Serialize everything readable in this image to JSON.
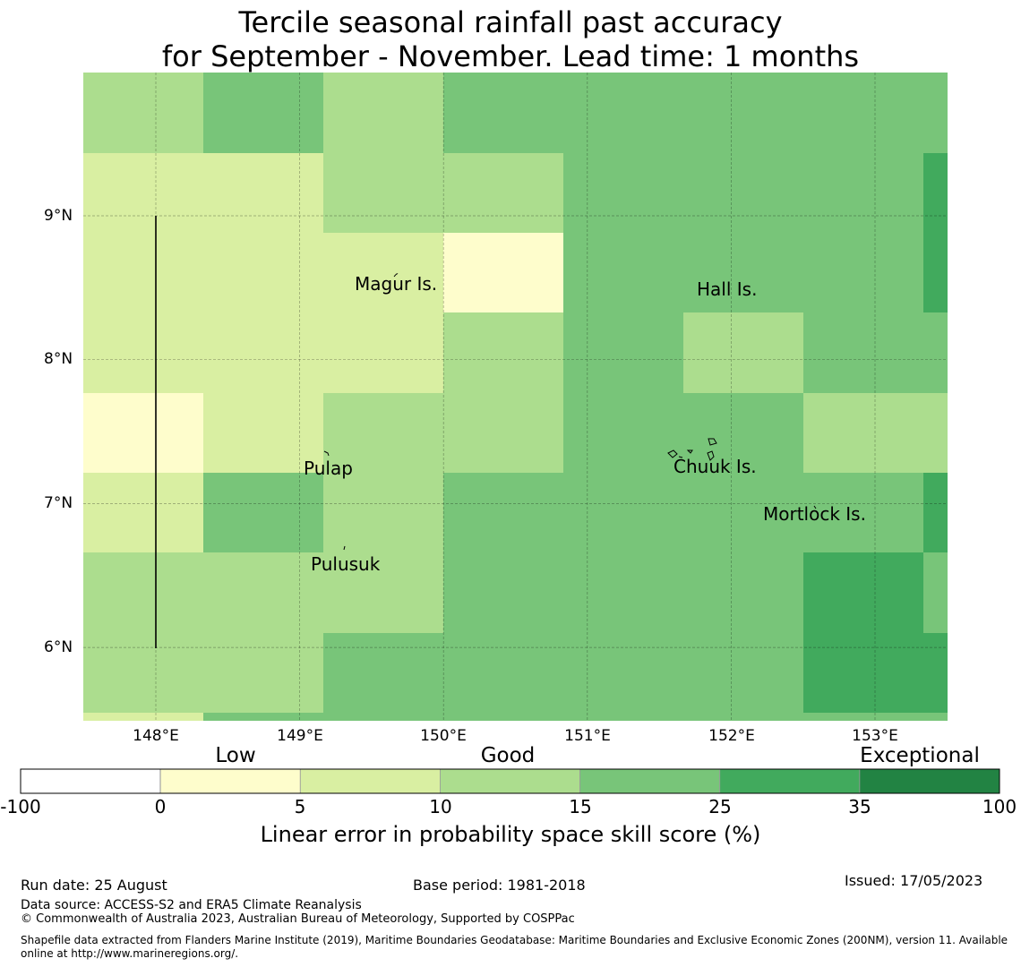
{
  "title": {
    "line1": "Tercile seasonal rainfall past accuracy",
    "line2": "for September - November. Lead time: 1 months"
  },
  "map": {
    "lon_range": [
      147.5,
      153.5
    ],
    "lat_range": [
      5.5,
      10.0
    ],
    "lat_ticks": [
      {
        "value": 9,
        "label": "9°N"
      },
      {
        "value": 8,
        "label": "8°N"
      },
      {
        "value": 7,
        "label": "7°N"
      },
      {
        "value": 6,
        "label": "6°N"
      }
    ],
    "lon_ticks": [
      {
        "value": 148,
        "label": "148°E"
      },
      {
        "value": 149,
        "label": "149°E"
      },
      {
        "value": 150,
        "label": "150°E"
      },
      {
        "value": 151,
        "label": "151°E"
      },
      {
        "value": 152,
        "label": "152°E"
      },
      {
        "value": 153,
        "label": "153°E"
      }
    ],
    "places": [
      {
        "name": "Magur Is.",
        "lon": 149.7,
        "lat": 8.55
      },
      {
        "name": "Hall Is.",
        "lon": 151.97,
        "lat": 8.47
      },
      {
        "name": "Pulap",
        "lon": 149.2,
        "lat": 7.25
      },
      {
        "name": "Chuuk Is.",
        "lon": 151.85,
        "lat": 7.26
      },
      {
        "name": "Mortlock Is.",
        "lon": 152.6,
        "lat": 6.93
      },
      {
        "name": "Pulusuk",
        "lon": 149.33,
        "lat": 6.6
      }
    ],
    "colors": {
      "c0": "#fefdcc",
      "c5": "#d9efa2",
      "c10": "#acdd8e",
      "c15": "#78c579",
      "c25": "#41aa5d",
      "c35": "#228343"
    },
    "grid": [
      [
        [
          93,
          81,
          227,
          171
        ],
        "c10"
      ],
      [
        [
          227,
          81,
          361,
          171
        ],
        "c15"
      ],
      [
        [
          361,
          81,
          495,
          171
        ],
        "c10"
      ],
      [
        [
          495,
          81,
          1058,
          171
        ],
        "c15"
      ],
      [
        [
          93,
          171,
          361,
          260
        ],
        "c5"
      ],
      [
        [
          361,
          171,
          629,
          260
        ],
        "c10"
      ],
      [
        [
          629,
          171,
          1031,
          260
        ],
        "c15"
      ],
      [
        [
          1031,
          171,
          1058,
          349
        ],
        "c25"
      ],
      [
        [
          93,
          260,
          495,
          439
        ],
        "c5"
      ],
      [
        [
          495,
          260,
          629,
          349
        ],
        "c0"
      ],
      [
        [
          629,
          260,
          1031,
          349
        ],
        "c15"
      ],
      [
        [
          495,
          349,
          629,
          439
        ],
        "c10"
      ],
      [
        [
          629,
          349,
          763,
          439
        ],
        "c15"
      ],
      [
        [
          763,
          349,
          897,
          439
        ],
        "c10"
      ],
      [
        [
          897,
          349,
          1058,
          439
        ],
        "c15"
      ],
      [
        [
          93,
          439,
          227,
          528
        ],
        "c0"
      ],
      [
        [
          227,
          439,
          361,
          528
        ],
        "c5"
      ],
      [
        [
          361,
          439,
          629,
          528
        ],
        "c10"
      ],
      [
        [
          629,
          439,
          897,
          528
        ],
        "c15"
      ],
      [
        [
          897,
          439,
          1058,
          528
        ],
        "c10"
      ],
      [
        [
          93,
          528,
          227,
          617
        ],
        "c5"
      ],
      [
        [
          227,
          528,
          361,
          617
        ],
        "c15"
      ],
      [
        [
          361,
          528,
          495,
          617
        ],
        "c10"
      ],
      [
        [
          495,
          528,
          1031,
          617
        ],
        "c15"
      ],
      [
        [
          1031,
          528,
          1058,
          617
        ],
        "c25"
      ],
      [
        [
          93,
          617,
          495,
          707
        ],
        "c10"
      ],
      [
        [
          495,
          617,
          897,
          707
        ],
        "c15"
      ],
      [
        [
          897,
          617,
          1031,
          707
        ],
        "c25"
      ],
      [
        [
          1031,
          617,
          1058,
          707
        ],
        "c15"
      ],
      [
        [
          93,
          707,
          361,
          796
        ],
        "c10"
      ],
      [
        [
          361,
          707,
          897,
          796
        ],
        "c15"
      ],
      [
        [
          897,
          707,
          1058,
          796
        ],
        "c25"
      ],
      [
        [
          93,
          796,
          227,
          805
        ],
        "c5"
      ],
      [
        [
          227,
          796,
          1058,
          805
        ],
        "c15"
      ]
    ]
  },
  "colorbar": {
    "categories": [
      "Low",
      "Good",
      "Exceptional"
    ],
    "ticks": [
      "-100",
      "0",
      "5",
      "10",
      "15",
      "25",
      "35",
      "100"
    ],
    "colors": [
      "#ffffff",
      "#fefdcc",
      "#d9efa2",
      "#acdd8e",
      "#78c579",
      "#41aa5d",
      "#228343"
    ],
    "label": "Linear error in probability space skill score (%)"
  },
  "footer": {
    "run_date": "Run date: 25 August",
    "base_period": "Base period: 1981-2018",
    "issued": "Issued: 17/05/2023",
    "data_source": "Data source: ACCESS-S2 and ERA5 Climate Reanalysis",
    "copyright": "© Commonwealth of Australia 2023, Australian Bureau of Meteorology, Supported by COSPPac",
    "shapefile_line1": "Shapefile data extracted from Flanders Marine Institute (2019), Maritime Boundaries Geodatabase: Maritime Boundaries and Exclusive Economic Zones (200NM), version 11. Available",
    "shapefile_line2": "online at http://www.marineregions.org/."
  }
}
